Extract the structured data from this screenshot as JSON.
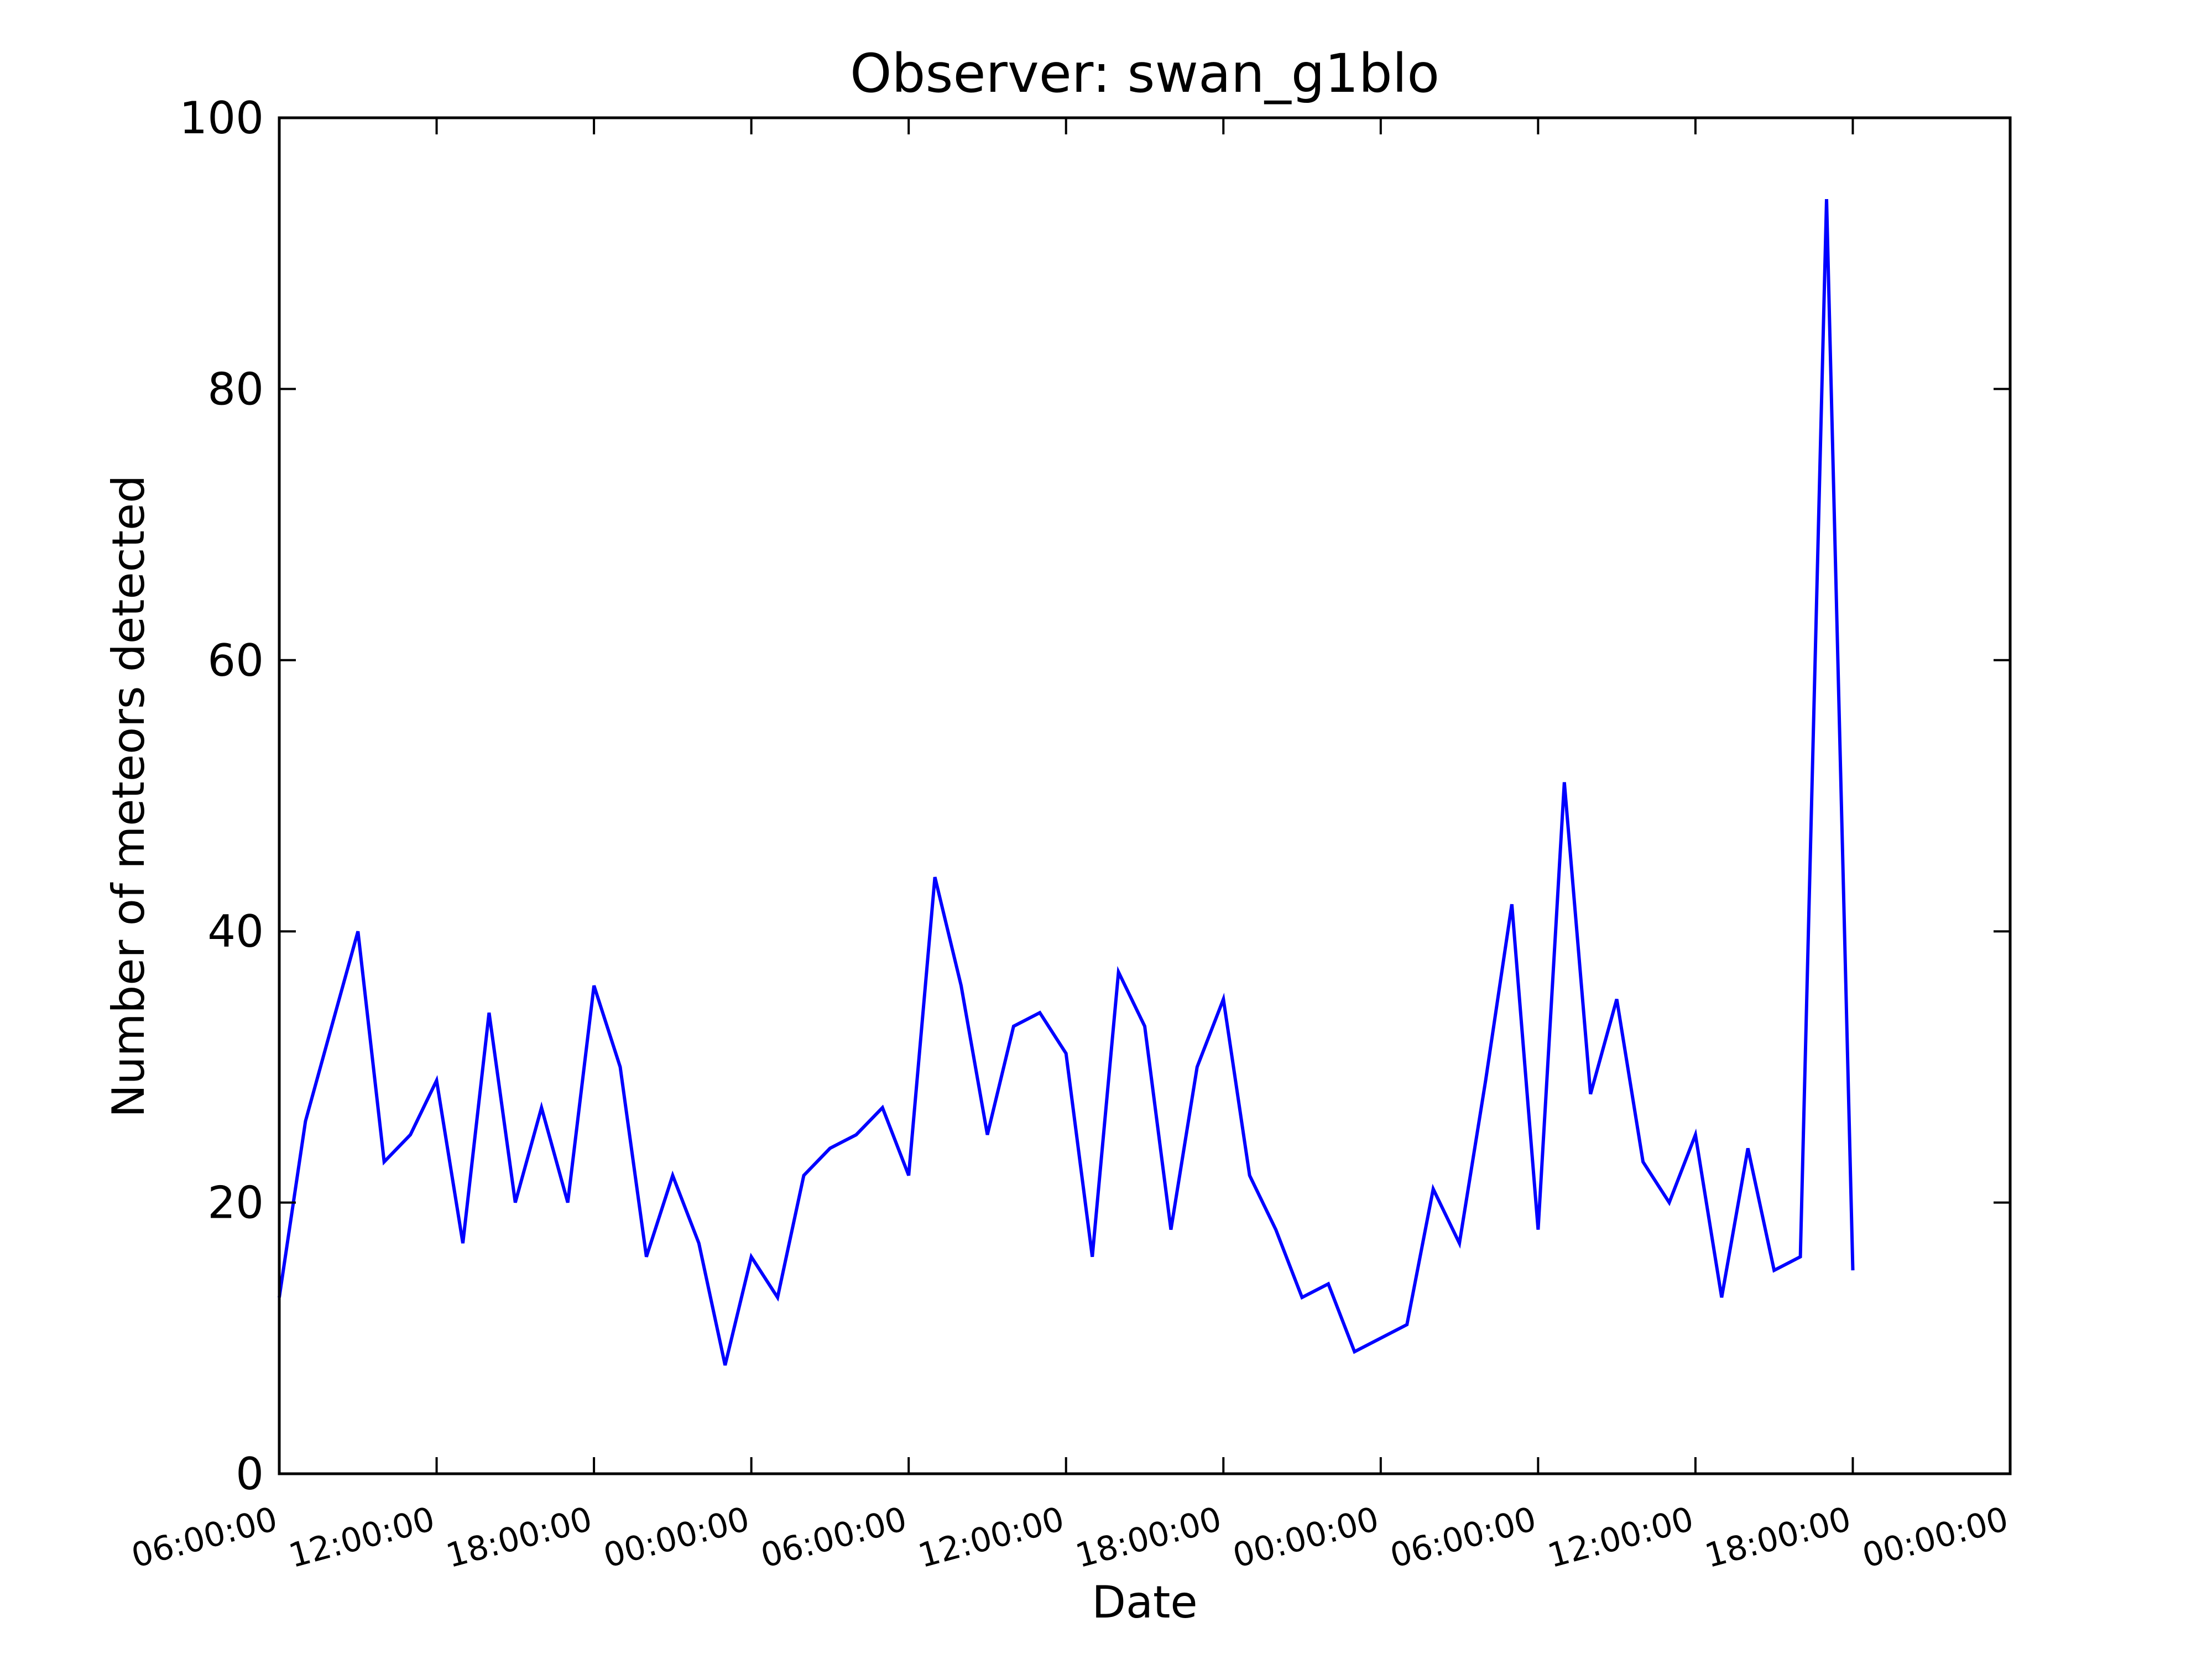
{
  "chart_data": {
    "type": "line",
    "title": "Observer: swan_g1blo",
    "xlabel": "Date",
    "ylabel": "Number of meteors detected",
    "x_ticks": [
      "06:00:00",
      "12:00:00",
      "18:00:00",
      "00:00:00",
      "06:00:00",
      "12:00:00",
      "18:00:00",
      "00:00:00",
      "06:00:00",
      "12:00:00",
      "18:00:00",
      "00:00:00"
    ],
    "y_ticks": [
      "0",
      "20",
      "40",
      "60",
      "80",
      "100"
    ],
    "xlim_hours": [
      0,
      66
    ],
    "ylim": [
      0,
      100
    ],
    "grid": false,
    "series": [
      {
        "color": "#0000ff",
        "x_hours": [
          0,
          1,
          2,
          3,
          4,
          5,
          6,
          7,
          8,
          9,
          10,
          11,
          12,
          13,
          14,
          15,
          16,
          17,
          18,
          19,
          20,
          21,
          22,
          23,
          24,
          25,
          26,
          27,
          28,
          29,
          30,
          31,
          32,
          33,
          34,
          35,
          36,
          37,
          38,
          39,
          40,
          41,
          42,
          43,
          44,
          45,
          46,
          47,
          48,
          49,
          50,
          51,
          52,
          53,
          54,
          55,
          56,
          57,
          58,
          59,
          60
        ],
        "values": [
          13,
          26,
          33,
          40,
          23,
          25,
          29,
          17,
          34,
          20,
          27,
          20,
          36,
          30,
          16,
          22,
          17,
          8,
          16,
          13,
          22,
          24,
          25,
          27,
          22,
          44,
          36,
          25,
          33,
          34,
          31,
          16,
          37,
          33,
          18,
          30,
          35,
          22,
          18,
          13,
          14,
          9,
          10,
          11,
          21,
          17,
          29,
          42,
          18,
          51,
          28,
          35,
          23,
          20,
          25,
          13,
          24,
          15,
          16,
          94,
          15
        ]
      }
    ]
  }
}
